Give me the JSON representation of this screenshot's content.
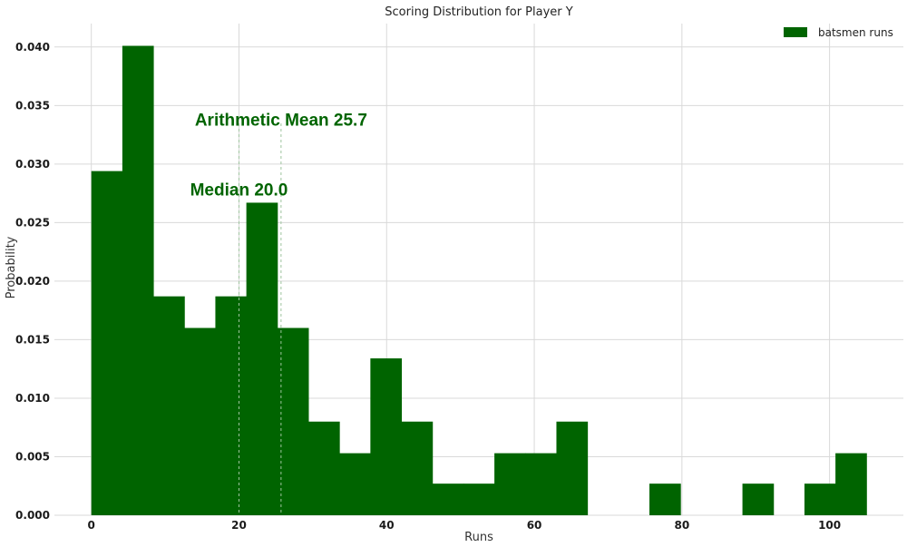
{
  "chart_data": {
    "type": "bar",
    "title": "Scoring Distribution for Player Y",
    "xlabel": "Runs",
    "ylabel": "Probability",
    "xlim": [
      -5,
      110
    ],
    "ylim": [
      0,
      0.042
    ],
    "x_ticks": [
      0,
      20,
      40,
      60,
      80,
      100
    ],
    "y_ticks": [
      0.0,
      0.005,
      0.01,
      0.015,
      0.02,
      0.025,
      0.03,
      0.035,
      0.04
    ],
    "y_tick_labels": [
      "0.000",
      "0.005",
      "0.010",
      "0.015",
      "0.020",
      "0.025",
      "0.030",
      "0.035",
      "0.040"
    ],
    "bin_edges": [
      0,
      4.2,
      8.4,
      12.6,
      16.8,
      21.0,
      25.2,
      29.4,
      33.6,
      37.8,
      42.0,
      46.2,
      50.4,
      54.6,
      58.8,
      63.0,
      67.2,
      71.4,
      75.6,
      79.8,
      84.0,
      88.2,
      92.4,
      96.6,
      100.8,
      105.0
    ],
    "values": [
      0.0294,
      0.0401,
      0.0187,
      0.016,
      0.0187,
      0.0267,
      0.016,
      0.008,
      0.0053,
      0.0134,
      0.008,
      0.0027,
      0.0027,
      0.0053,
      0.0053,
      0.008,
      0,
      0,
      0.0027,
      0,
      0,
      0.0027,
      0,
      0.0027,
      0.0053
    ],
    "series": [
      {
        "name": "batsmen runs",
        "color": "#006400"
      }
    ],
    "legend_position": "top-right",
    "grid": true,
    "annotations": [
      {
        "text": "Arithmetic Mean 25.7",
        "x": 25.7,
        "color": "#006400"
      },
      {
        "text": "Median 20.0",
        "x": 20.0,
        "color": "#006400"
      }
    ],
    "annotation_label_y": [
      0.0333,
      0.0273
    ]
  }
}
